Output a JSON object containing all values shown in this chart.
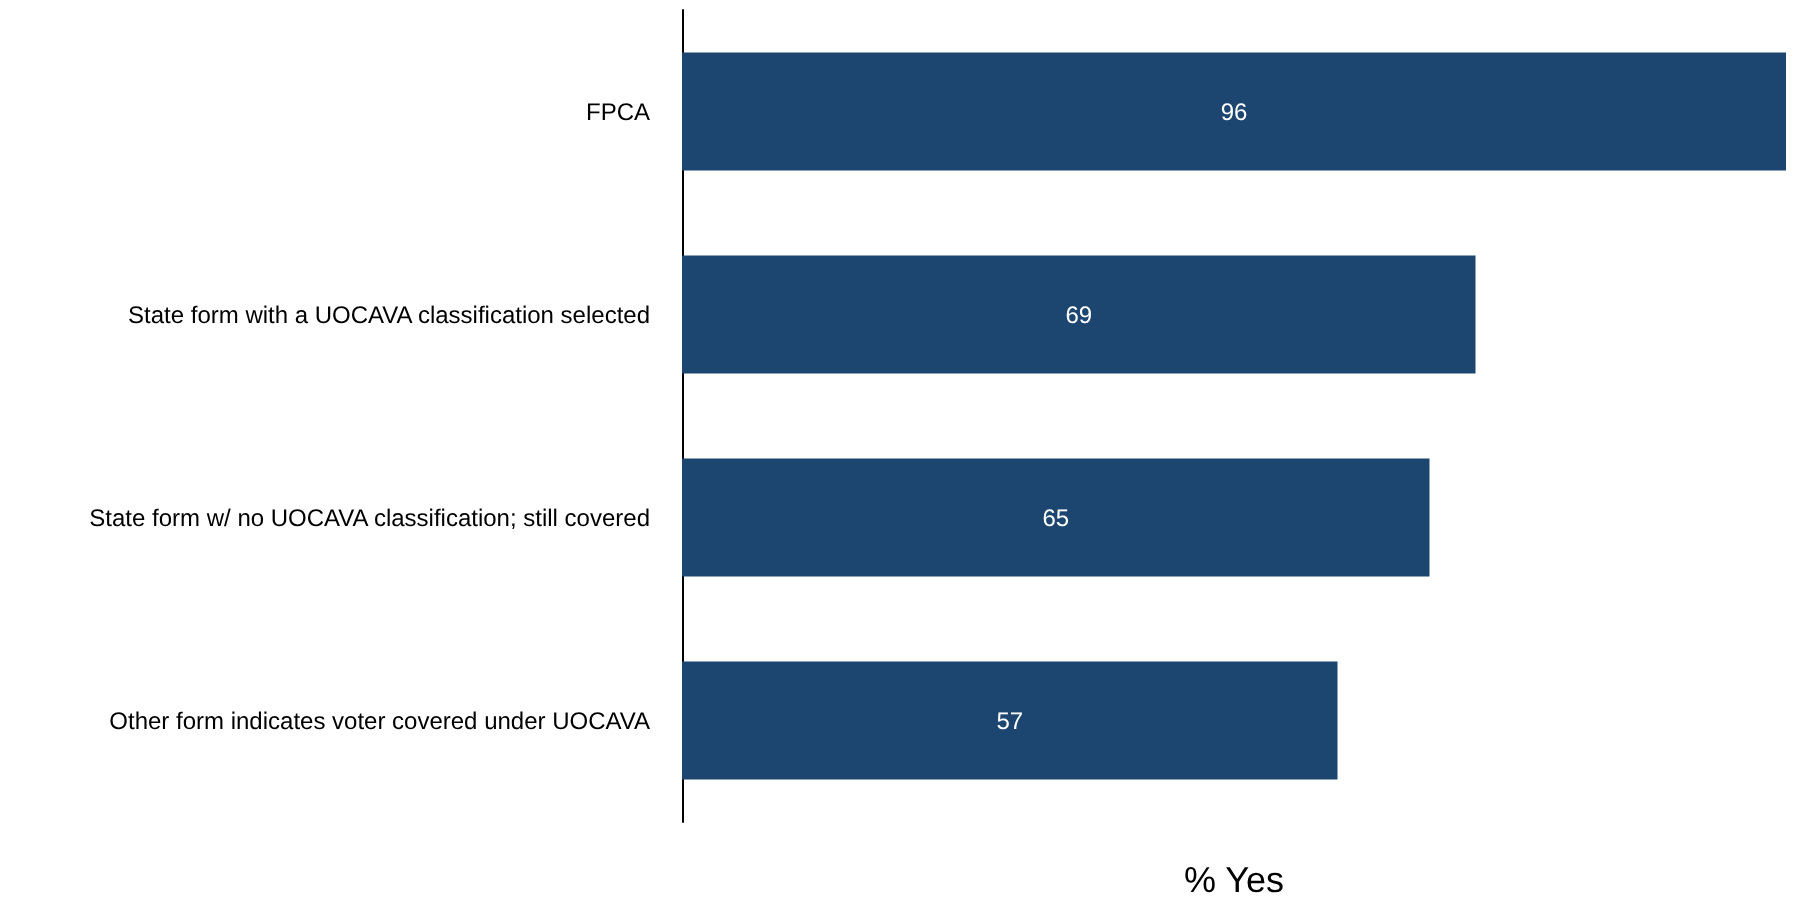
{
  "chart_data": {
    "type": "bar",
    "orientation": "horizontal",
    "xlabel": "% Yes",
    "categories": [
      "FPCA",
      "State form with a UOCAVA classification selected",
      "State form w/ no UOCAVA classification; still covered",
      "Other form indicates voter covered under UOCAVA"
    ],
    "values": [
      96,
      69,
      65,
      57
    ],
    "color": "#1c4670",
    "data_labels": true
  }
}
